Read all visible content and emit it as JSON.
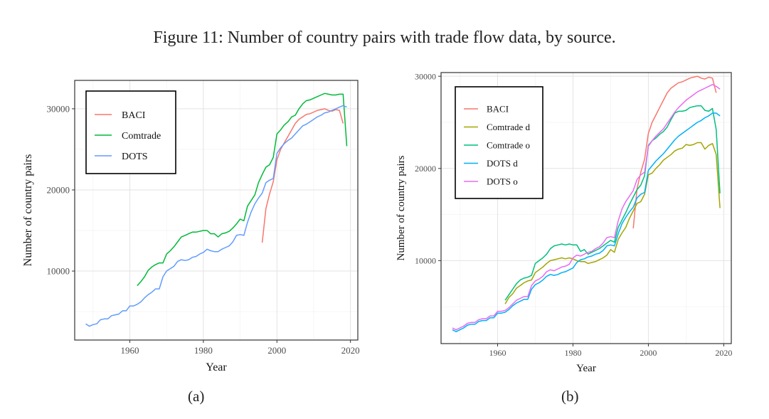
{
  "figure_title": "Figure 11: Number of country pairs with trade flow data, by source.",
  "subfigure_labels": [
    "(a)",
    "(b)"
  ],
  "chart_data": [
    {
      "type": "line",
      "xlabel": "Year",
      "ylabel": "Number of country pairs",
      "xlim": [
        1945,
        2022
      ],
      "ylim": [
        1500,
        33500
      ],
      "xticks": [
        1960,
        1980,
        2000,
        2020
      ],
      "yticks": [
        10000,
        20000,
        30000
      ],
      "grid": true,
      "legend_position": "top-left",
      "series": [
        {
          "name": "BACI",
          "color": "#F8766D",
          "x": [
            1996,
            1997,
            1998,
            1999,
            2000,
            2001,
            2002,
            2003,
            2004,
            2005,
            2006,
            2007,
            2008,
            2009,
            2010,
            2011,
            2012,
            2013,
            2014,
            2015,
            2016,
            2017,
            2018
          ],
          "values": [
            13500,
            17700,
            19500,
            21000,
            23700,
            25000,
            25800,
            26600,
            27400,
            28200,
            28700,
            29000,
            29300,
            29400,
            29600,
            29800,
            29900,
            30000,
            29800,
            29700,
            29900,
            29800,
            28200
          ]
        },
        {
          "name": "Comtrade",
          "color": "#00BA38",
          "x": [
            1962,
            1963,
            1964,
            1965,
            1966,
            1967,
            1968,
            1969,
            1970,
            1971,
            1972,
            1973,
            1974,
            1975,
            1976,
            1977,
            1978,
            1979,
            1980,
            1981,
            1982,
            1983,
            1984,
            1985,
            1986,
            1987,
            1988,
            1989,
            1990,
            1991,
            1992,
            1993,
            1994,
            1995,
            1996,
            1997,
            1998,
            1999,
            2000,
            2001,
            2002,
            2003,
            2004,
            2005,
            2006,
            2007,
            2008,
            2009,
            2010,
            2011,
            2012,
            2013,
            2014,
            2015,
            2016,
            2017,
            2018,
            2019
          ],
          "values": [
            8200,
            8700,
            9300,
            10100,
            10500,
            10800,
            11000,
            11000,
            12100,
            12500,
            13000,
            13600,
            14200,
            14400,
            14600,
            14800,
            14800,
            14900,
            15000,
            15000,
            14600,
            14600,
            14200,
            14600,
            14700,
            14900,
            15300,
            15800,
            16400,
            16200,
            18000,
            18700,
            19400,
            20900,
            21900,
            22800,
            23100,
            24000,
            26900,
            27400,
            28000,
            28400,
            29000,
            29200,
            30000,
            30600,
            31000,
            31100,
            31300,
            31500,
            31700,
            31900,
            31800,
            31700,
            31700,
            31800,
            31800,
            25400
          ]
        },
        {
          "name": "DOTS",
          "color": "#619CFF",
          "x": [
            1948,
            1949,
            1950,
            1951,
            1952,
            1953,
            1954,
            1955,
            1956,
            1957,
            1958,
            1959,
            1960,
            1961,
            1962,
            1963,
            1964,
            1965,
            1966,
            1967,
            1968,
            1969,
            1970,
            1971,
            1972,
            1973,
            1974,
            1975,
            1976,
            1977,
            1978,
            1979,
            1980,
            1981,
            1982,
            1983,
            1984,
            1985,
            1986,
            1987,
            1988,
            1989,
            1990,
            1991,
            1992,
            1993,
            1994,
            1995,
            1996,
            1997,
            1998,
            1999,
            2000,
            2001,
            2002,
            2003,
            2004,
            2005,
            2006,
            2007,
            2008,
            2009,
            2010,
            2011,
            2012,
            2013,
            2014,
            2015,
            2016,
            2017,
            2018,
            2019
          ],
          "values": [
            3500,
            3200,
            3400,
            3500,
            4000,
            4100,
            4100,
            4500,
            4600,
            4700,
            5100,
            5100,
            5700,
            5700,
            5900,
            6200,
            6700,
            7100,
            7400,
            7800,
            7800,
            9300,
            10000,
            10300,
            10600,
            11200,
            11400,
            11300,
            11400,
            11700,
            11800,
            12100,
            12300,
            12700,
            12500,
            12400,
            12400,
            12700,
            12900,
            13100,
            13600,
            14400,
            14500,
            14400,
            16000,
            17300,
            18300,
            19000,
            19600,
            20900,
            21200,
            21400,
            24500,
            25200,
            25700,
            26100,
            26400,
            26900,
            27400,
            27900,
            28100,
            28400,
            28700,
            29000,
            29200,
            29500,
            29600,
            29800,
            30000,
            30200,
            30400,
            30200
          ]
        }
      ]
    },
    {
      "type": "line",
      "xlabel": "Year",
      "ylabel": "Number of country pairs",
      "xlim": [
        1945,
        2022
      ],
      "ylim": [
        1000,
        30400
      ],
      "xticks": [
        1960,
        1980,
        2000,
        2020
      ],
      "yticks": [
        10000,
        20000,
        30000
      ],
      "grid": true,
      "legend_position": "top-left",
      "series": [
        {
          "name": "BACI",
          "color": "#F8766D",
          "x": [
            1996,
            1997,
            1998,
            1999,
            2000,
            2001,
            2002,
            2003,
            2004,
            2005,
            2006,
            2007,
            2008,
            2009,
            2010,
            2011,
            2012,
            2013,
            2014,
            2015,
            2016,
            2017,
            2018
          ],
          "values": [
            13500,
            17800,
            19600,
            21000,
            23800,
            25000,
            25800,
            26600,
            27400,
            28200,
            28700,
            29000,
            29300,
            29400,
            29600,
            29800,
            29900,
            30000,
            29800,
            29700,
            29900,
            29800,
            28200
          ]
        },
        {
          "name": "Comtrade d",
          "color": "#A3A500",
          "x": [
            1962,
            1963,
            1964,
            1965,
            1966,
            1967,
            1968,
            1969,
            1970,
            1971,
            1972,
            1973,
            1974,
            1975,
            1976,
            1977,
            1978,
            1979,
            1980,
            1981,
            1982,
            1983,
            1984,
            1985,
            1986,
            1987,
            1988,
            1989,
            1990,
            1991,
            1992,
            1993,
            1994,
            1995,
            1996,
            1997,
            1998,
            1999,
            2000,
            2001,
            2002,
            2003,
            2004,
            2005,
            2006,
            2007,
            2008,
            2009,
            2010,
            2011,
            2012,
            2013,
            2014,
            2015,
            2016,
            2017,
            2018,
            2019
          ],
          "values": [
            5300,
            6000,
            6400,
            7000,
            7300,
            7600,
            7800,
            7900,
            8700,
            9000,
            9300,
            9700,
            10000,
            10100,
            10200,
            10300,
            10200,
            10300,
            10200,
            10000,
            9900,
            9900,
            9700,
            9800,
            9900,
            10100,
            10300,
            10600,
            11200,
            10900,
            12300,
            13000,
            13600,
            14600,
            15400,
            16200,
            16400,
            17200,
            19300,
            19500,
            20000,
            20400,
            20900,
            21200,
            21500,
            21900,
            22100,
            22200,
            22600,
            22500,
            22600,
            22800,
            22800,
            22100,
            22500,
            22700,
            21500,
            15700
          ]
        },
        {
          "name": "Comtrade o",
          "color": "#00BF7D",
          "x": [
            1962,
            1963,
            1964,
            1965,
            1966,
            1967,
            1968,
            1969,
            1970,
            1971,
            1972,
            1973,
            1974,
            1975,
            1976,
            1977,
            1978,
            1979,
            1980,
            1981,
            1982,
            1983,
            1984,
            1985,
            1986,
            1987,
            1988,
            1989,
            1990,
            1991,
            1992,
            1993,
            1994,
            1995,
            1996,
            1997,
            1998,
            1999,
            2000,
            2001,
            2002,
            2003,
            2004,
            2005,
            2006,
            2007,
            2008,
            2009,
            2010,
            2011,
            2012,
            2013,
            2014,
            2015,
            2016,
            2017,
            2018,
            2019
          ],
          "values": [
            5700,
            6300,
            6900,
            7500,
            7900,
            8100,
            8200,
            8400,
            9700,
            10000,
            10300,
            10700,
            11300,
            11600,
            11700,
            11800,
            11700,
            11800,
            11700,
            11700,
            11000,
            11200,
            10700,
            10900,
            11100,
            11300,
            11600,
            11900,
            12200,
            12000,
            13600,
            14400,
            15200,
            16100,
            16900,
            17700,
            18200,
            19200,
            22500,
            23000,
            23300,
            23700,
            24000,
            24500,
            25300,
            26000,
            26200,
            26200,
            26300,
            26600,
            26700,
            26800,
            26800,
            26300,
            26200,
            26500,
            24200,
            17300
          ]
        },
        {
          "name": "DOTS d",
          "color": "#00B0F6",
          "x": [
            1948,
            1949,
            1950,
            1951,
            1952,
            1953,
            1954,
            1955,
            1956,
            1957,
            1958,
            1959,
            1960,
            1961,
            1962,
            1963,
            1964,
            1965,
            1966,
            1967,
            1968,
            1969,
            1970,
            1971,
            1972,
            1973,
            1974,
            1975,
            1976,
            1977,
            1978,
            1979,
            1980,
            1981,
            1982,
            1983,
            1984,
            1985,
            1986,
            1987,
            1988,
            1989,
            1990,
            1991,
            1992,
            1993,
            1994,
            1995,
            1996,
            1997,
            1998,
            1999,
            2000,
            2001,
            2002,
            2003,
            2004,
            2005,
            2006,
            2007,
            2008,
            2009,
            2010,
            2011,
            2012,
            2013,
            2014,
            2015,
            2016,
            2017,
            2018,
            2019
          ],
          "values": [
            2500,
            2300,
            2500,
            2700,
            3000,
            3100,
            3100,
            3400,
            3500,
            3500,
            3800,
            3800,
            4300,
            4300,
            4400,
            4700,
            5100,
            5400,
            5600,
            5800,
            5800,
            6900,
            7400,
            7600,
            7900,
            8300,
            8500,
            8400,
            8500,
            8700,
            8800,
            9000,
            9200,
            9800,
            10100,
            10200,
            10400,
            10500,
            10700,
            10800,
            11100,
            11600,
            11700,
            11600,
            12900,
            14000,
            14700,
            15300,
            15800,
            16800,
            17200,
            17400,
            19800,
            20300,
            20800,
            21200,
            21600,
            22100,
            22600,
            23100,
            23500,
            23800,
            24100,
            24400,
            24700,
            25000,
            25200,
            25500,
            25700,
            26000,
            26000,
            25700
          ]
        },
        {
          "name": "DOTS o",
          "color": "#E76BF3",
          "x": [
            1948,
            1949,
            1950,
            1951,
            1952,
            1953,
            1954,
            1955,
            1956,
            1957,
            1958,
            1959,
            1960,
            1961,
            1962,
            1963,
            1964,
            1965,
            1966,
            1967,
            1968,
            1969,
            1970,
            1971,
            1972,
            1973,
            1974,
            1975,
            1976,
            1977,
            1978,
            1979,
            1980,
            1981,
            1982,
            1983,
            1984,
            1985,
            1986,
            1987,
            1988,
            1989,
            1990,
            1991,
            1992,
            1993,
            1994,
            1995,
            1996,
            1997,
            1998,
            1999,
            2000,
            2001,
            2002,
            2003,
            2004,
            2005,
            2006,
            2007,
            2008,
            2009,
            2010,
            2011,
            2012,
            2013,
            2014,
            2015,
            2016,
            2017,
            2018,
            2019
          ],
          "values": [
            2700,
            2500,
            2700,
            2900,
            3200,
            3300,
            3300,
            3600,
            3700,
            3700,
            4000,
            4000,
            4500,
            4500,
            4600,
            4900,
            5300,
            5700,
            5900,
            6100,
            6100,
            7300,
            7800,
            8000,
            8300,
            8800,
            9000,
            8900,
            9100,
            9300,
            9400,
            9600,
            10300,
            10600,
            10500,
            10700,
            10900,
            11000,
            11300,
            11500,
            11900,
            12500,
            12600,
            12500,
            14300,
            15600,
            16400,
            17000,
            17600,
            18800,
            19300,
            19600,
            22400,
            23000,
            23500,
            23900,
            24300,
            24900,
            25500,
            26100,
            26600,
            27000,
            27400,
            27700,
            28000,
            28300,
            28500,
            28700,
            28900,
            29100,
            28900,
            28600
          ]
        }
      ]
    }
  ]
}
